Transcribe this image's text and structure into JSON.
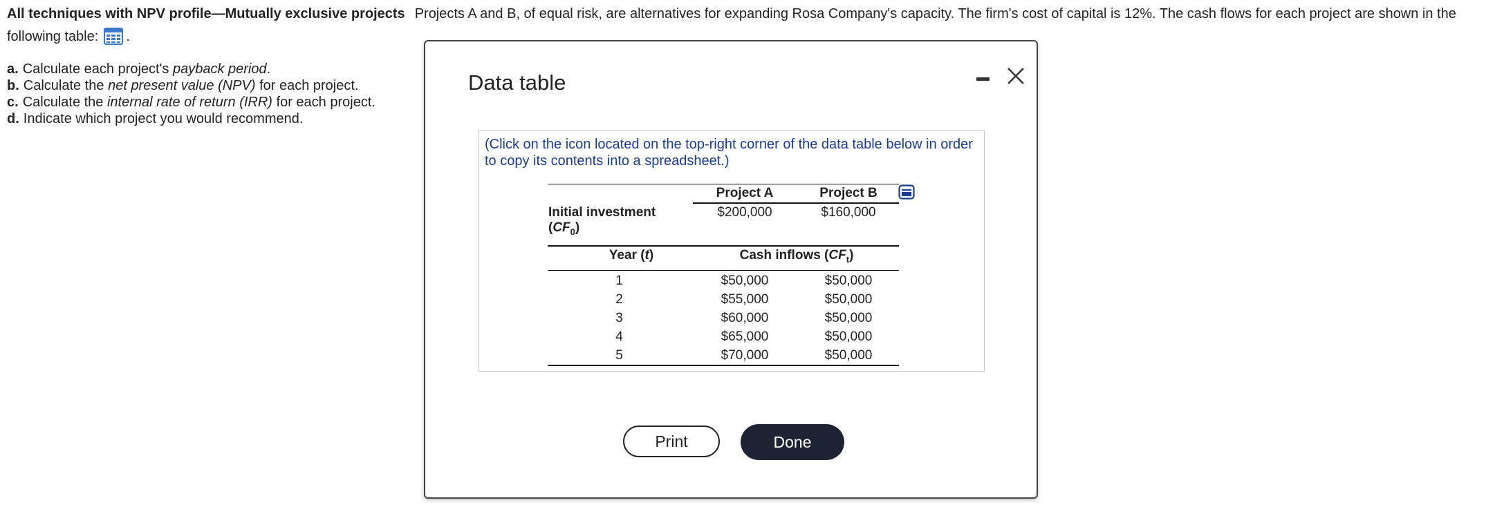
{
  "problem": {
    "title": "All techniques with NPV profile—Mutually exclusive projects",
    "text": "Projects A and B, of equal risk, are alternatives for expanding Rosa Company's capacity.  The firm's cost of capital is 12%.  The cash flows for each project are shown in the following table:",
    "after_icon": "."
  },
  "questions": [
    {
      "letter": "a.",
      "before": "Calculate each project's ",
      "em": "payback period",
      "after": "."
    },
    {
      "letter": "b.",
      "before": "Calculate the ",
      "em": "net present value (NPV)",
      "after": " for each project."
    },
    {
      "letter": "c.",
      "before": "Calculate the ",
      "em": "internal rate of return (IRR)",
      "after": " for each project."
    },
    {
      "letter": "d.",
      "before": "Indicate which project you would recommend.",
      "em": "",
      "after": ""
    }
  ],
  "modal": {
    "title": "Data table",
    "hint": "(Click on the icon located on the top-right corner of the data table below in order to copy its contents into a spreadsheet.)",
    "print_label": "Print",
    "done_label": "Done"
  },
  "table": {
    "col_a": "Project A",
    "col_b": "Project B",
    "initial_label_line1": "Initial investment",
    "initial_label_prefix": "(",
    "initial_label_var": "CF",
    "initial_label_sub": "0",
    "initial_label_suffix": ")",
    "initial_a": "$200,000",
    "initial_b": "$160,000",
    "year_label_prefix": "Year (",
    "year_label_var": "t",
    "year_label_suffix": ")",
    "cash_label_prefix": "Cash inflows (",
    "cash_label_var": "CF",
    "cash_label_sub": "t",
    "cash_label_suffix": ")",
    "rows": [
      {
        "year": "1",
        "a": "$50,000",
        "b": "$50,000"
      },
      {
        "year": "2",
        "a": "$55,000",
        "b": "$50,000"
      },
      {
        "year": "3",
        "a": "$60,000",
        "b": "$50,000"
      },
      {
        "year": "4",
        "a": "$65,000",
        "b": "$50,000"
      },
      {
        "year": "5",
        "a": "$70,000",
        "b": "$50,000"
      }
    ]
  },
  "colors": {
    "hint_text": "#1a3a94",
    "done_button": "#1c2433",
    "table_icon": "#3a78c9"
  },
  "icons": {
    "table": "table-grid-icon",
    "copy": "spreadsheet-copy-icon",
    "minimize": "minimize-icon",
    "close": "close-icon"
  }
}
